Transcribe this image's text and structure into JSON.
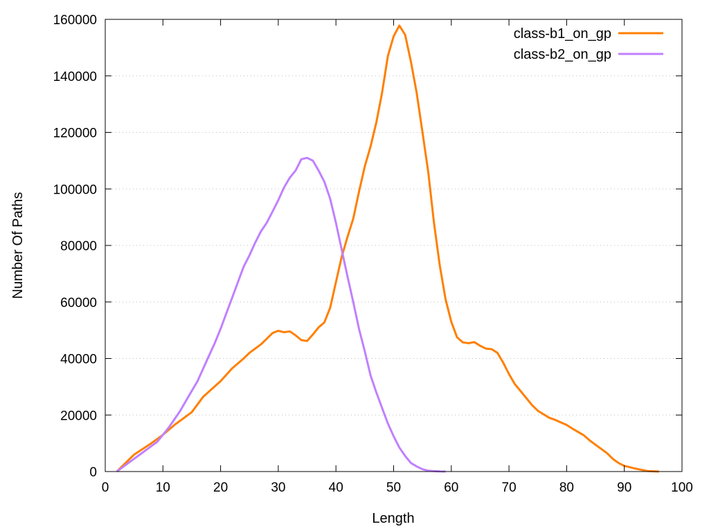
{
  "chart_data": {
    "type": "line",
    "title": "",
    "xlabel": "Length",
    "ylabel": "Number Of Paths",
    "xlim": [
      0,
      100
    ],
    "ylim": [
      0,
      160000
    ],
    "xticks": [
      0,
      10,
      20,
      30,
      40,
      50,
      60,
      70,
      80,
      90,
      100
    ],
    "yticks": [
      0,
      20000,
      40000,
      60000,
      80000,
      100000,
      120000,
      140000,
      160000
    ],
    "grid": "horizontal dotted",
    "legend_position": "top-right",
    "series": [
      {
        "name": "class-b1_on_gp",
        "color": "#ff7f00",
        "x": [
          2,
          5,
          8,
          10,
          12,
          15,
          17,
          20,
          22,
          24,
          25,
          27,
          29,
          30,
          31,
          32,
          33,
          34,
          35,
          36,
          37,
          38,
          39,
          40,
          41,
          42,
          43,
          44,
          45,
          46,
          47,
          48,
          49,
          50,
          51,
          52,
          53,
          54,
          55,
          56,
          57,
          58,
          59,
          60,
          61,
          62,
          63,
          64,
          65,
          66,
          67,
          68,
          69,
          70,
          71,
          72,
          73,
          74,
          75,
          77,
          78,
          80,
          81,
          83,
          84,
          85,
          86,
          87,
          88,
          89,
          90,
          92,
          94,
          96
        ],
        "y": [
          0,
          6000,
          10000,
          13000,
          16500,
          21000,
          26500,
          32000,
          36500,
          40000,
          42000,
          45000,
          49000,
          49800,
          49300,
          49600,
          48200,
          46500,
          46200,
          48500,
          51000,
          52800,
          58000,
          67000,
          76000,
          83000,
          89500,
          99000,
          108000,
          115000,
          123500,
          134000,
          147000,
          154000,
          157800,
          154500,
          145000,
          134000,
          120000,
          106000,
          88000,
          73000,
          61000,
          53000,
          47500,
          45700,
          45400,
          45800,
          44500,
          43500,
          43300,
          42000,
          38500,
          34500,
          31000,
          28500,
          26000,
          23500,
          21500,
          19000,
          18300,
          16500,
          15200,
          12800,
          11000,
          9500,
          8000,
          6500,
          4500,
          3000,
          2000,
          1000,
          200,
          0
        ]
      },
      {
        "name": "class-b2_on_gp",
        "color": "#c080ff",
        "x": [
          2,
          4,
          6,
          8,
          9,
          10,
          11,
          12,
          13,
          14,
          15,
          16,
          17,
          18,
          19,
          20,
          21,
          22,
          23,
          24,
          25,
          26,
          27,
          28,
          29,
          30,
          31,
          32,
          33,
          34,
          35,
          36,
          37,
          38,
          39,
          40,
          41,
          42,
          43,
          44,
          45,
          46,
          47,
          48,
          49,
          50,
          51,
          52,
          53,
          54,
          55,
          56,
          57,
          58,
          59
        ],
        "y": [
          0,
          3000,
          6000,
          9000,
          10500,
          13000,
          15500,
          18500,
          21500,
          25000,
          28500,
          32000,
          36500,
          41000,
          45500,
          50500,
          56000,
          61500,
          67000,
          72500,
          76500,
          81000,
          85000,
          88000,
          92000,
          96000,
          100500,
          104000,
          106500,
          110500,
          111000,
          110000,
          106500,
          102500,
          96500,
          88000,
          78500,
          69000,
          60000,
          50500,
          42500,
          34000,
          28000,
          22500,
          17000,
          12500,
          8500,
          5500,
          3000,
          1800,
          800,
          300,
          150,
          50,
          0
        ]
      }
    ]
  }
}
